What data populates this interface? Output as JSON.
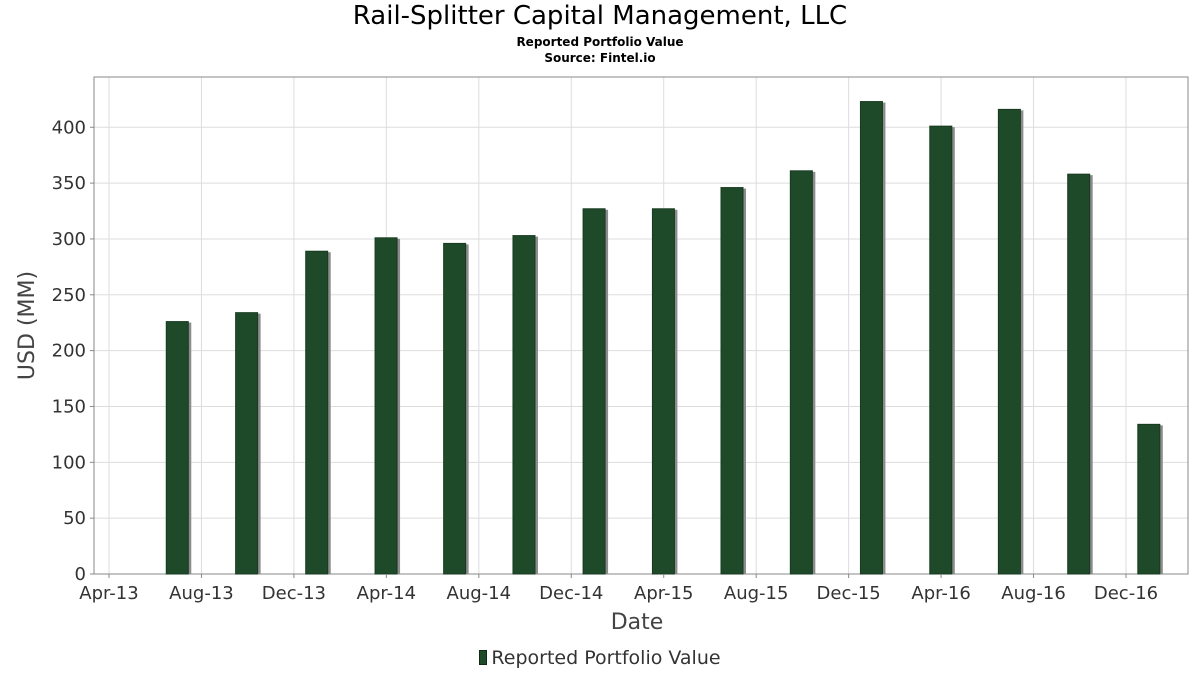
{
  "header": {
    "title": "Rail-Splitter Capital Management, LLC",
    "subtitle": "Reported Portfolio Value",
    "source": "Source: Fintel.io"
  },
  "legend": {
    "label": "Reported Portfolio Value"
  },
  "colors": {
    "bar": "#1f4a2a",
    "bar_shadow": "#8c8c8c",
    "grid": "#dddddd",
    "frame": "#888888"
  },
  "chart_data": {
    "type": "bar",
    "title": "Rail-Splitter Capital Management, LLC",
    "xlabel": "Date",
    "ylabel": "USD (MM)",
    "ylim": [
      0,
      445
    ],
    "yticks": [
      0,
      50,
      100,
      150,
      200,
      250,
      300,
      350,
      400
    ],
    "xticks": [
      "Apr-13",
      "Aug-13",
      "Dec-13",
      "Apr-14",
      "Aug-14",
      "Dec-14",
      "Apr-15",
      "Aug-15",
      "Dec-15",
      "Apr-16",
      "Aug-16",
      "Dec-16"
    ],
    "grid": true,
    "legend_position": "bottom",
    "series": [
      {
        "name": "Reported Portfolio Value",
        "x": [
          "2013-06-30",
          "2013-09-30",
          "2013-12-31",
          "2014-03-31",
          "2014-06-30",
          "2014-09-30",
          "2014-12-31",
          "2015-03-31",
          "2015-06-30",
          "2015-09-30",
          "2015-12-31",
          "2016-03-31",
          "2016-06-30",
          "2016-09-30",
          "2016-12-31"
        ],
        "values": [
          226,
          234,
          289,
          301,
          296,
          303,
          327,
          327,
          346,
          361,
          423,
          401,
          416,
          358,
          134
        ]
      }
    ]
  }
}
